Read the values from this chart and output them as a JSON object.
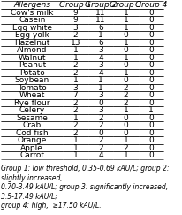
{
  "title": "",
  "headers": [
    "Allergens",
    "Group 1",
    "Group 2",
    "Group 3",
    "Group 4"
  ],
  "rows": [
    [
      "Cow's milk",
      "9",
      "11",
      "1",
      "0"
    ],
    [
      "Casein",
      "9",
      "11",
      "1",
      "0"
    ],
    [
      "Egg white",
      "3",
      "6",
      "1",
      "0"
    ],
    [
      "Egg yolk",
      "2",
      "1",
      "0",
      "0"
    ],
    [
      "Hazelnut",
      "13",
      "6",
      "1",
      "0"
    ],
    [
      "Almond",
      "1",
      "3",
      "0",
      "0"
    ],
    [
      "Walnut",
      "1",
      "4",
      "1",
      "0"
    ],
    [
      "Peanut",
      "2",
      "3",
      "0",
      "0"
    ],
    [
      "Potato",
      "2",
      "4",
      "1",
      "0"
    ],
    [
      "Soybean",
      "1",
      "1",
      "0",
      "0"
    ],
    [
      "Tomato",
      "3",
      "1",
      "2",
      "0"
    ],
    [
      "Wheat",
      "7",
      "3",
      "2",
      "0"
    ],
    [
      "Rye flour",
      "2",
      "0",
      "2",
      "0"
    ],
    [
      "Celery",
      "2",
      "3",
      "1",
      "1"
    ],
    [
      "Sesame",
      "1",
      "2",
      "0",
      "0"
    ],
    [
      "Crab",
      "2",
      "2",
      "0",
      "0"
    ],
    [
      "Cod fish",
      "2",
      "0",
      "0",
      "0"
    ],
    [
      "Orange",
      "1",
      "2",
      "1",
      "0"
    ],
    [
      "Apple",
      "1",
      "2",
      "2",
      "0"
    ],
    [
      "Carrot",
      "1",
      "4",
      "1",
      "0"
    ]
  ],
  "footnote": "Group 1: low threshold, 0.35-0.69 kAU/L; group 2: slightly increased,\n0.70-3.49 kAU/L; group 3: significantly increased, 3.5-17.49 kAU/L;\ngroup 4: high,  ≥17.50 kAU/L.",
  "header_fontsize": 6.5,
  "cell_fontsize": 6.5,
  "footnote_fontsize": 5.5,
  "bg_color": "#ffffff",
  "header_color": "#ffffff",
  "line_color": "#000000"
}
